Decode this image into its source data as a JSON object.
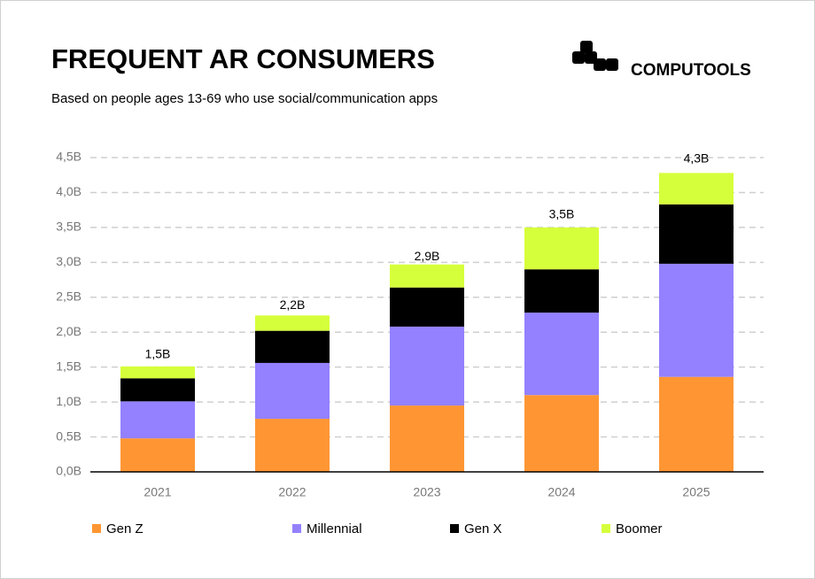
{
  "chart_data": {
    "type": "bar",
    "stacked": true,
    "title": "FREQUENT AR CONSUMERS",
    "subtitle": "Based on people ages 13-69 who use social/communication apps",
    "brand": "COMPUTOOLS",
    "categories": [
      "2021",
      "2022",
      "2023",
      "2024",
      "2025"
    ],
    "series": [
      {
        "name": "Gen Z",
        "color": "#ff9633",
        "values": [
          0.48,
          0.76,
          0.95,
          1.1,
          1.36
        ]
      },
      {
        "name": "Millennial",
        "color": "#9381ff",
        "values": [
          0.53,
          0.8,
          1.13,
          1.18,
          1.62
        ]
      },
      {
        "name": "Gen X",
        "color": "#000000",
        "values": [
          0.33,
          0.46,
          0.56,
          0.62,
          0.85
        ]
      },
      {
        "name": "Boomer",
        "color": "#d6ff3b",
        "values": [
          0.17,
          0.22,
          0.33,
          0.6,
          0.45
        ]
      }
    ],
    "totals": {
      "values": [
        1.5,
        2.2,
        2.9,
        3.5,
        4.3
      ],
      "value_labels": [
        "1,5B",
        "2,2B",
        "2,9B",
        "3,5B",
        "4,3B"
      ]
    },
    "ylim": [
      0,
      4.5
    ],
    "yticks": [
      {
        "value": 0,
        "label": "0,0B"
      },
      {
        "value": 0.5,
        "label": "0,5B"
      },
      {
        "value": 1,
        "label": "1,0B"
      },
      {
        "value": 1.5,
        "label": "1,5B"
      },
      {
        "value": 2,
        "label": "2,0B"
      },
      {
        "value": 2.5,
        "label": "2,5B"
      },
      {
        "value": 3,
        "label": "3,0B"
      },
      {
        "value": 3.5,
        "label": "3,5B"
      },
      {
        "value": 4,
        "label": "4,0B"
      },
      {
        "value": 4.5,
        "label": "4,5B"
      }
    ],
    "grid": true,
    "legend": "bottom"
  }
}
